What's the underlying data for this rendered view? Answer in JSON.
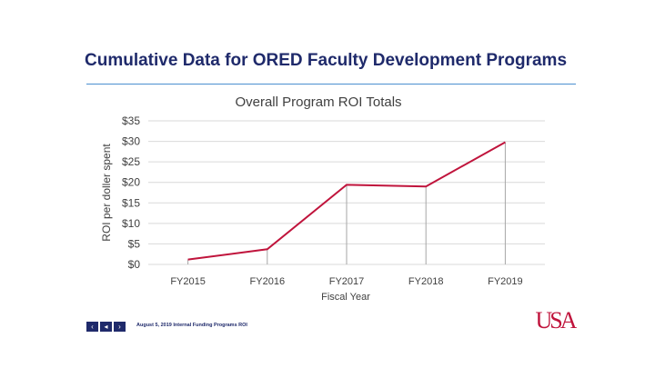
{
  "slide": {
    "title": "Cumulative Data for ORED Faculty Development Programs",
    "footer": "August 5, 2019 Internal Funding Programs ROI",
    "nav": {
      "prev": "‹",
      "back": "◂",
      "next": "›"
    },
    "logo_text": "USA"
  },
  "colors": {
    "title": "#1f2a6b",
    "rule": "#4a8fd0",
    "line": "#c0143c",
    "grid": "#d9d9d9",
    "text": "#404040"
  },
  "chart_data": {
    "type": "line",
    "title": "Overall Program ROI Totals",
    "xlabel": "Fiscal Year",
    "ylabel": "ROI per doller spent",
    "categories": [
      "FY2015",
      "FY2016",
      "FY2017",
      "FY2018",
      "FY2019"
    ],
    "series": [
      {
        "values": [
          1.2,
          3.7,
          19.4,
          19.0,
          29.8
        ]
      }
    ],
    "ylim": [
      0,
      35
    ],
    "yticks": [
      0,
      5,
      10,
      15,
      20,
      25,
      30,
      35
    ],
    "ytick_labels": [
      "$0",
      "$5",
      "$10",
      "$15",
      "$20",
      "$25",
      "$30",
      "$35"
    ],
    "grid": true,
    "drop_lines": true,
    "legend": "none"
  }
}
